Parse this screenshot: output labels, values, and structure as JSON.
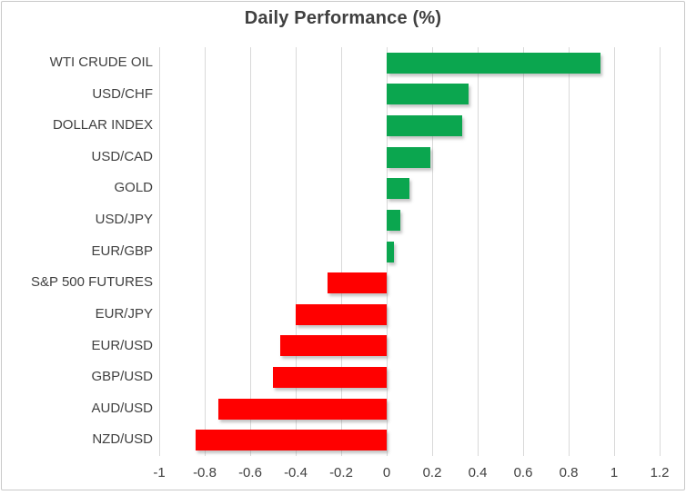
{
  "chart_data": {
    "type": "bar",
    "orientation": "horizontal",
    "title": "Daily Performance (%)",
    "categories": [
      "WTI CRUDE OIL",
      "USD/CHF",
      "DOLLAR INDEX",
      "USD/CAD",
      "GOLD",
      "USD/JPY",
      "EUR/GBP",
      "S&P 500 FUTURES",
      "EUR/JPY",
      "EUR/USD",
      "GBP/USD",
      "AUD/USD",
      "NZD/USD"
    ],
    "values": [
      0.94,
      0.36,
      0.33,
      0.19,
      0.1,
      0.06,
      0.03,
      -0.26,
      -0.4,
      -0.47,
      -0.5,
      -0.74,
      -0.84
    ],
    "xlabel": "",
    "ylabel": "",
    "xlim": [
      -1,
      1.2
    ],
    "x_ticks": [
      -1,
      -0.8,
      -0.6,
      -0.4,
      -0.2,
      0,
      0.2,
      0.4,
      0.6,
      0.8,
      1,
      1.2
    ],
    "x_tick_labels": [
      "-1",
      "-0.8",
      "-0.6",
      "-0.4",
      "-0.2",
      "0",
      "0.2",
      "0.4",
      "0.6",
      "0.8",
      "1",
      "1.2"
    ],
    "grid": "vertical",
    "legend": "none",
    "colors": {
      "positive_bar": "#0BA64F",
      "negative_bar": "#FF0000",
      "title_text": "#404040",
      "axis_text": "#404040",
      "gridline": "#D9D9D9",
      "chart_border": "#C9C9C9",
      "background": "#FFFFFF"
    }
  }
}
